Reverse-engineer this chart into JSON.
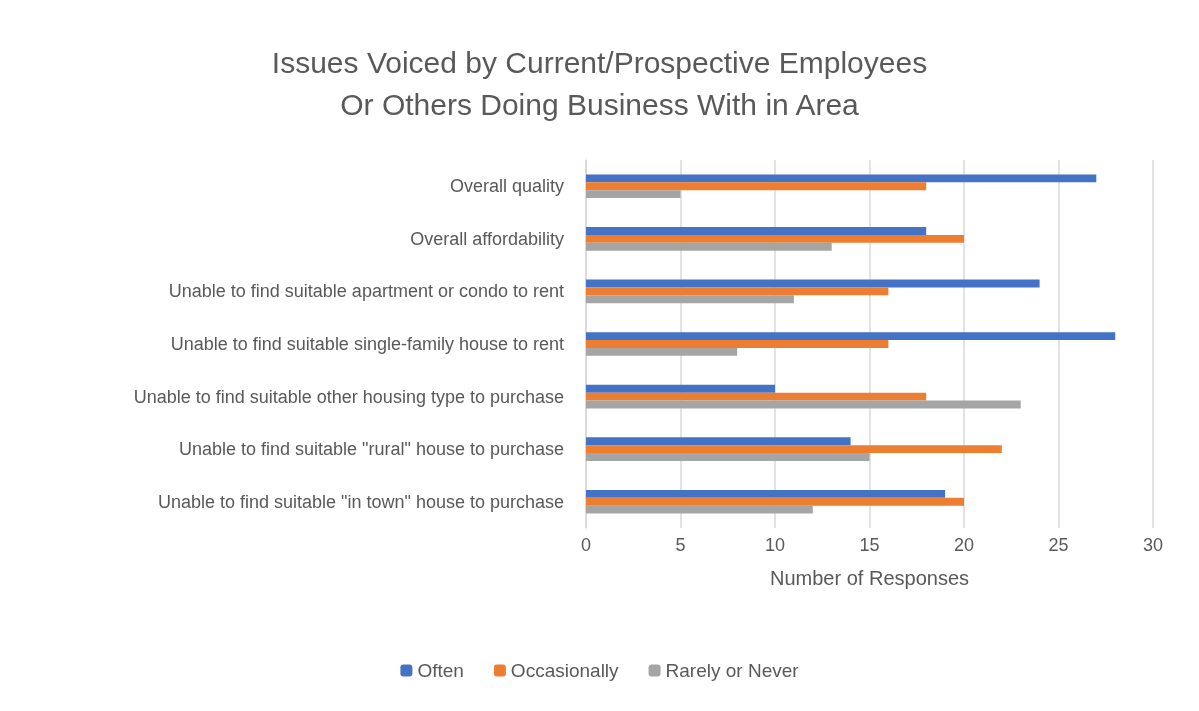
{
  "chart_data": {
    "type": "bar",
    "orientation": "horizontal",
    "title": "Issues Voiced by Current/Prospective Employees\nOr Others Doing Business With in Area",
    "xlabel": "Number of Responses",
    "categories": [
      "Overall quality",
      "Overall affordability",
      "Unable to find suitable apartment or condo to rent",
      "Unable to find suitable single-family house to rent",
      "Unable to find suitable other housing type to purchase",
      "Unable to find suitable \"rural\" house to purchase",
      "Unable to find suitable \"in town\" house to purchase"
    ],
    "series": [
      {
        "name": "Often",
        "color": "#4472c4",
        "values": [
          27,
          18,
          24,
          28,
          10,
          14,
          19
        ]
      },
      {
        "name": "Occasionally",
        "color": "#ed7d31",
        "values": [
          18,
          20,
          16,
          16,
          18,
          22,
          20
        ]
      },
      {
        "name": "Rarely or Never",
        "color": "#a5a5a5",
        "values": [
          5,
          13,
          11,
          8,
          23,
          15,
          12
        ]
      }
    ],
    "xlim": [
      0,
      30
    ],
    "xticks": [
      0,
      5,
      10,
      15,
      20,
      25,
      30
    ],
    "grid": "x",
    "legend": "bottom"
  }
}
